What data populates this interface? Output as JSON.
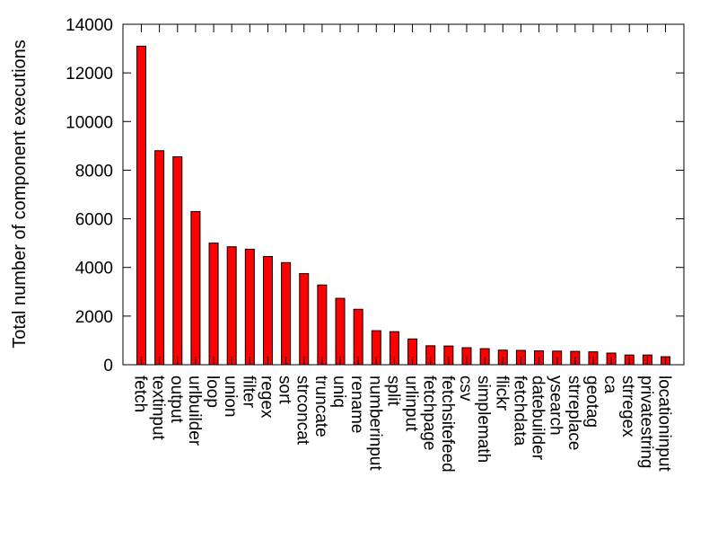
{
  "chart_data": {
    "type": "bar",
    "title": "",
    "xlabel": "",
    "ylabel": "Total number of component executions",
    "ylim": [
      0,
      14000
    ],
    "yticks": [
      0,
      2000,
      4000,
      6000,
      8000,
      10000,
      12000,
      14000
    ],
    "grid": false,
    "legend": "none",
    "bar_color": "#ff0000",
    "bar_edge_color": "#000000",
    "categories": [
      "fetch",
      "textinput",
      "output",
      "urlbuilder",
      "loop",
      "union",
      "filter",
      "regex",
      "sort",
      "strconcat",
      "truncate",
      "uniq",
      "rename",
      "numberinput",
      "split",
      "urlinput",
      "fetchpage",
      "fetchsitefeed",
      "csv",
      "simplemath",
      "flickr",
      "fetchdata",
      "datebuilder",
      "ysearch",
      "strreplace",
      "geotag",
      "ca",
      "strregex",
      "privatestring",
      "locationinput"
    ],
    "values": [
      13100,
      8800,
      8550,
      6300,
      5000,
      4850,
      4750,
      4450,
      4200,
      3750,
      3280,
      2730,
      2280,
      1400,
      1360,
      1060,
      780,
      770,
      700,
      660,
      600,
      590,
      570,
      560,
      550,
      530,
      480,
      400,
      400,
      330
    ]
  }
}
